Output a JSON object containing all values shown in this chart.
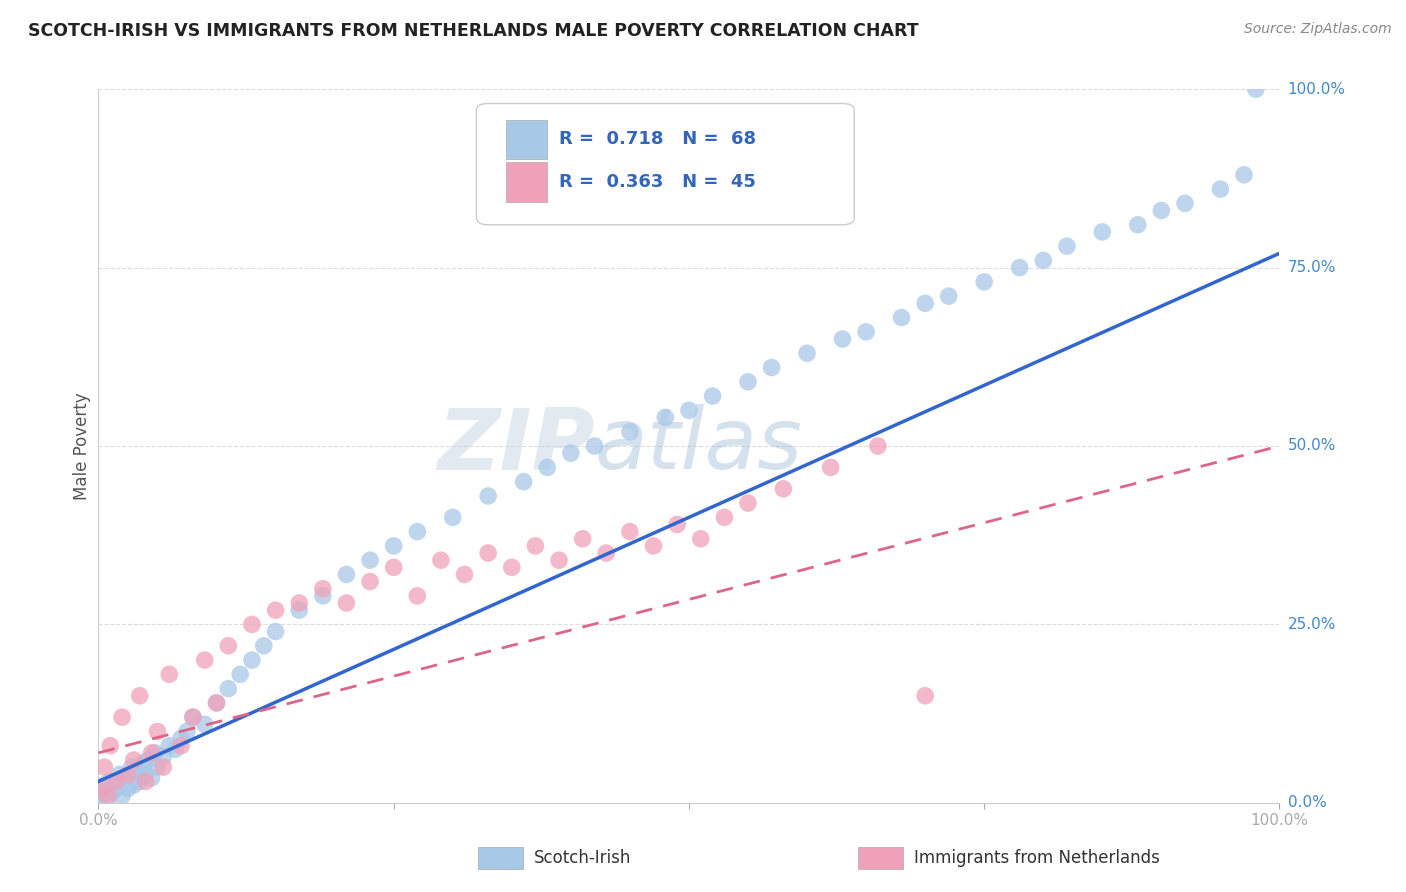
{
  "title": "SCOTCH-IRISH VS IMMIGRANTS FROM NETHERLANDS MALE POVERTY CORRELATION CHART",
  "source": "Source: ZipAtlas.com",
  "ylabel": "Male Poverty",
  "series1_label": "Scotch-Irish",
  "series1_color": "#A8C8E8",
  "series1_line_color": "#3366CC",
  "series1_R": 0.718,
  "series1_N": 68,
  "series2_label": "Immigrants from Netherlands",
  "series2_color": "#F0A0B8",
  "series2_line_color": "#DD6688",
  "series2_line_dash": "dashed",
  "series2_R": 0.363,
  "series2_N": 45,
  "legend_text_color": "#3366BB",
  "watermark_text": "ZIPatlas",
  "watermark_color": "#C8D8EE",
  "background_color": "#FFFFFF",
  "grid_color": "#DDDDDD",
  "ytick_color": "#4488CC",
  "title_color": "#222222",
  "source_color": "#888888",
  "ylabel_color": "#555555",
  "xlim": [
    0,
    100
  ],
  "ylim": [
    0,
    100
  ],
  "scatter1_x": [
    0.3,
    0.5,
    0.8,
    1.0,
    1.2,
    1.5,
    1.8,
    2.0,
    2.2,
    2.5,
    2.8,
    3.0,
    3.2,
    3.5,
    3.8,
    4.0,
    4.2,
    4.5,
    4.8,
    5.0,
    5.5,
    6.0,
    6.5,
    7.0,
    7.5,
    8.0,
    9.0,
    10.0,
    11.0,
    12.0,
    13.0,
    14.0,
    15.0,
    17.0,
    19.0,
    21.0,
    23.0,
    25.0,
    27.0,
    30.0,
    33.0,
    36.0,
    38.0,
    40.0,
    42.0,
    45.0,
    48.0,
    50.0,
    52.0,
    55.0,
    57.0,
    60.0,
    63.0,
    65.0,
    68.0,
    70.0,
    72.0,
    75.0,
    78.0,
    80.0,
    82.0,
    85.0,
    88.0,
    90.0,
    92.0,
    95.0,
    97.0,
    98.0
  ],
  "scatter1_y": [
    1.0,
    2.5,
    0.5,
    3.0,
    1.5,
    2.0,
    4.0,
    1.0,
    3.5,
    2.0,
    5.0,
    2.5,
    4.5,
    3.0,
    5.5,
    4.0,
    6.0,
    3.5,
    7.0,
    5.0,
    6.5,
    8.0,
    7.5,
    9.0,
    10.0,
    12.0,
    11.0,
    14.0,
    16.0,
    18.0,
    20.0,
    22.0,
    24.0,
    27.0,
    29.0,
    32.0,
    34.0,
    36.0,
    38.0,
    40.0,
    43.0,
    45.0,
    47.0,
    49.0,
    50.0,
    52.0,
    54.0,
    55.0,
    57.0,
    59.0,
    61.0,
    63.0,
    65.0,
    66.0,
    68.0,
    70.0,
    71.0,
    73.0,
    75.0,
    76.0,
    78.0,
    80.0,
    81.0,
    83.0,
    84.0,
    86.0,
    88.0,
    100.0
  ],
  "scatter2_x": [
    0.3,
    0.5,
    0.8,
    1.0,
    1.5,
    2.0,
    2.5,
    3.0,
    3.5,
    4.0,
    4.5,
    5.0,
    5.5,
    6.0,
    7.0,
    8.0,
    9.0,
    10.0,
    11.0,
    13.0,
    15.0,
    17.0,
    19.0,
    21.0,
    23.0,
    25.0,
    27.0,
    29.0,
    31.0,
    33.0,
    35.0,
    37.0,
    39.0,
    41.0,
    43.0,
    45.0,
    47.0,
    49.0,
    51.0,
    53.0,
    55.0,
    58.0,
    62.0,
    66.0,
    70.0
  ],
  "scatter2_y": [
    2.0,
    5.0,
    1.0,
    8.0,
    3.0,
    12.0,
    4.0,
    6.0,
    15.0,
    3.0,
    7.0,
    10.0,
    5.0,
    18.0,
    8.0,
    12.0,
    20.0,
    14.0,
    22.0,
    25.0,
    27.0,
    28.0,
    30.0,
    28.0,
    31.0,
    33.0,
    29.0,
    34.0,
    32.0,
    35.0,
    33.0,
    36.0,
    34.0,
    37.0,
    35.0,
    38.0,
    36.0,
    39.0,
    37.0,
    40.0,
    42.0,
    44.0,
    47.0,
    50.0,
    15.0
  ],
  "line1_x0": 0,
  "line1_y0": 3,
  "line1_x1": 100,
  "line1_y1": 77,
  "line2_x0": 0,
  "line2_y0": 7,
  "line2_x1": 100,
  "line2_y1": 50
}
